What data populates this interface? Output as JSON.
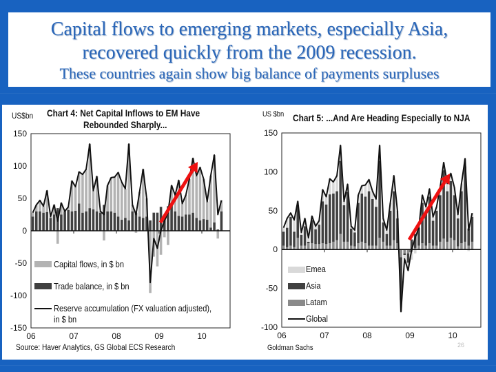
{
  "slide": {
    "title_line1": "Capital flows to emerging markets, especially Asia,",
    "title_line2": "recovered quickly from the 2009 recession.",
    "subtitle": "These countries again show big balance of payments surpluses",
    "footer": "Goldman Sachs",
    "page_number": "26",
    "colors": {
      "background": "#1862c0",
      "title_text": "#2a66b8",
      "arrow": "#ee1111"
    }
  },
  "chart_data": [
    {
      "type": "bar",
      "title": "Chart 4: Net Capital Inflows to EM Have Rebounded Sharply...",
      "title_line1": "Chart 4: Net Capital Inflows to EM Have",
      "title_line2": "Rebounded Sharply...",
      "ylabel": "US$bn",
      "ylim": [
        -150,
        150
      ],
      "yticks": [
        "150",
        "100",
        "50",
        "0",
        "-50",
        "-100",
        "-150"
      ],
      "xticks": [
        "06",
        "07",
        "08",
        "09",
        "10"
      ],
      "x_start": "2006-01",
      "frequency": "monthly",
      "source": "Source: Haver Analytics, GS Global ECS Research",
      "stacked": true,
      "annotation": "red arrow indicating rebound from 2009",
      "series": [
        {
          "name": "Capital flows, in $ bn",
          "kind": "bar",
          "color": "#b3b3b3",
          "values": [
            6,
            10,
            17,
            10,
            33,
            2,
            15,
            -20,
            18,
            0,
            5,
            47,
            37,
            49,
            59,
            65,
            99,
            29,
            54,
            2,
            -15,
            40,
            52,
            55,
            68,
            58,
            45,
            118,
            10,
            -3,
            38,
            75,
            28,
            -96,
            -40,
            -55,
            -37,
            -10,
            -22,
            30,
            25,
            55,
            20,
            30,
            55,
            84,
            65,
            82,
            62,
            28,
            80,
            104,
            -12,
            17
          ]
        },
        {
          "name": "Trade balance, in $ bn",
          "kind": "bar",
          "color": "#404040",
          "values": [
            22,
            30,
            30,
            28,
            29,
            20,
            25,
            35,
            25,
            30,
            32,
            30,
            31,
            42,
            28,
            30,
            35,
            33,
            30,
            28,
            40,
            30,
            30,
            28,
            22,
            17,
            20,
            16,
            30,
            28,
            22,
            20,
            22,
            16,
            28,
            28,
            37,
            25,
            38,
            40,
            30,
            23,
            22,
            25,
            25,
            28,
            20,
            16,
            18,
            17,
            5,
            13,
            2,
            30
          ]
        },
        {
          "name": "Reserve accumulation (FX valuation adjusted), in $ bn",
          "name_line1": "Reserve accumulation (FX valuation adjusted),",
          "name_line2": "in $ bn",
          "kind": "line",
          "color": "#111111",
          "values": [
            28,
            40,
            47,
            38,
            62,
            22,
            40,
            15,
            43,
            30,
            37,
            77,
            68,
            91,
            87,
            95,
            134,
            62,
            84,
            30,
            25,
            70,
            82,
            83,
            90,
            75,
            65,
            134,
            40,
            25,
            60,
            95,
            50,
            -80,
            -12,
            -27,
            0,
            15,
            28,
            70,
            55,
            78,
            42,
            55,
            80,
            112,
            85,
            98,
            80,
            45,
            85,
            117,
            25,
            47
          ]
        }
      ]
    },
    {
      "type": "bar",
      "title": "Chart 5: ...And Are Heading Especially to NJA",
      "ylabel": "US $bn",
      "ylim": [
        -100,
        150
      ],
      "yticks": [
        "150",
        "100",
        "50",
        "0",
        "-50",
        "-100"
      ],
      "xticks": [
        "06",
        "07",
        "08",
        "09",
        "10"
      ],
      "x_start": "2006-01",
      "frequency": "monthly",
      "stacked": true,
      "annotation": "red arrow indicating rebound from 2009",
      "series": [
        {
          "name": "Emea",
          "kind": "bar",
          "color": "#d9d9d9",
          "values": [
            5,
            12,
            5,
            15,
            5,
            3,
            10,
            5,
            5,
            4,
            5,
            15,
            10,
            20,
            15,
            20,
            20,
            5,
            10,
            3,
            3,
            10,
            10,
            15,
            15,
            10,
            10,
            20,
            5,
            5,
            10,
            20,
            10,
            -15,
            -5,
            -10,
            -10,
            -5,
            0,
            10,
            5,
            10,
            5,
            5,
            10,
            10,
            10,
            10,
            10,
            5,
            10,
            10,
            -2,
            5
          ]
        },
        {
          "name": "Asia",
          "kind": "bar",
          "color": "#404040",
          "values": [
            18,
            25,
            37,
            20,
            42,
            14,
            25,
            2,
            30,
            19,
            25,
            54,
            51,
            63,
            62,
            63,
            94,
            47,
            64,
            22,
            18,
            52,
            62,
            60,
            70,
            60,
            50,
            99,
            25,
            15,
            45,
            63,
            32,
            -55,
            -2,
            -12,
            13,
            18,
            23,
            52,
            45,
            60,
            32,
            45,
            60,
            88,
            65,
            73,
            58,
            36,
            67,
            97,
            22,
            32
          ]
        },
        {
          "name": "Latam",
          "kind": "bar",
          "color": "#8a8a8a",
          "values": [
            5,
            3,
            5,
            3,
            15,
            5,
            5,
            8,
            8,
            7,
            7,
            8,
            7,
            8,
            10,
            12,
            20,
            10,
            10,
            5,
            4,
            8,
            10,
            8,
            5,
            5,
            5,
            15,
            10,
            5,
            5,
            12,
            8,
            -10,
            -5,
            -5,
            -3,
            2,
            5,
            8,
            5,
            8,
            5,
            5,
            10,
            14,
            10,
            15,
            12,
            4,
            8,
            10,
            5,
            10
          ]
        },
        {
          "name": "Global",
          "kind": "line",
          "color": "#111111",
          "values": [
            28,
            40,
            47,
            38,
            62,
            22,
            40,
            15,
            43,
            30,
            37,
            77,
            68,
            91,
            87,
            95,
            134,
            62,
            84,
            30,
            25,
            70,
            82,
            83,
            90,
            75,
            65,
            134,
            40,
            25,
            60,
            95,
            50,
            -80,
            -12,
            -27,
            0,
            15,
            28,
            70,
            55,
            78,
            42,
            55,
            80,
            112,
            85,
            98,
            80,
            45,
            85,
            117,
            25,
            47
          ]
        }
      ]
    }
  ]
}
